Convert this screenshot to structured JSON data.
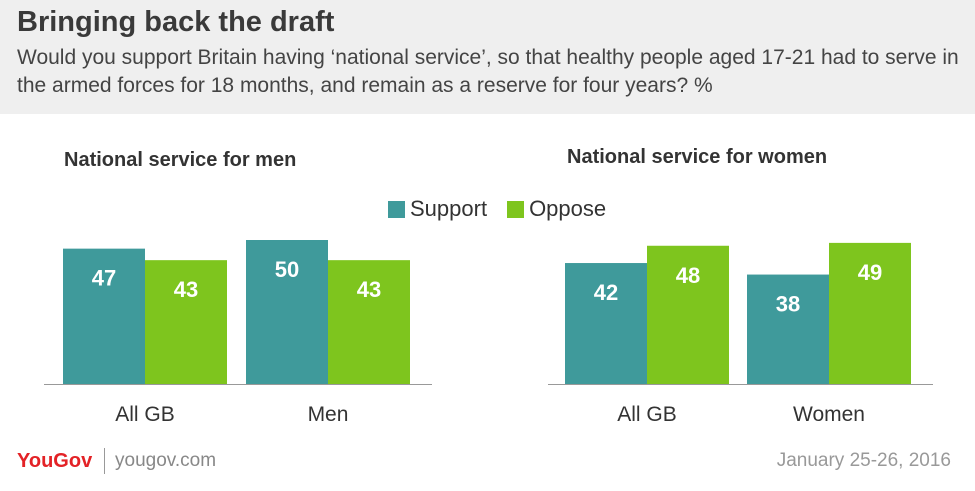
{
  "header": {
    "title": "Bringing back the draft",
    "subtitle": "Would you support Britain having ‘national service’, so that healthy people aged 17-21 had to serve in the armed forces for 18 months, and remain as a reserve for four years? %"
  },
  "legend": {
    "support": "Support",
    "oppose": "Oppose"
  },
  "colors": {
    "support": "#3f9a9b",
    "oppose": "#7ec51e",
    "header_bg": "#efefef",
    "brand": "#e32226"
  },
  "chart_data": [
    {
      "type": "bar",
      "title": "National service for men",
      "categories": [
        "All GB",
        "Men"
      ],
      "series": [
        {
          "name": "Support",
          "values": [
            47,
            50
          ]
        },
        {
          "name": "Oppose",
          "values": [
            43,
            43
          ]
        }
      ],
      "ylim": [
        0,
        50
      ]
    },
    {
      "type": "bar",
      "title": "National service for women",
      "categories": [
        "All GB",
        "Women"
      ],
      "series": [
        {
          "name": "Support",
          "values": [
            42,
            38
          ]
        },
        {
          "name": "Oppose",
          "values": [
            48,
            49
          ]
        }
      ],
      "ylim": [
        0,
        50
      ]
    }
  ],
  "footer": {
    "logo": "YouGov",
    "url": "yougov.com",
    "date": "January 25-26, 2016"
  }
}
